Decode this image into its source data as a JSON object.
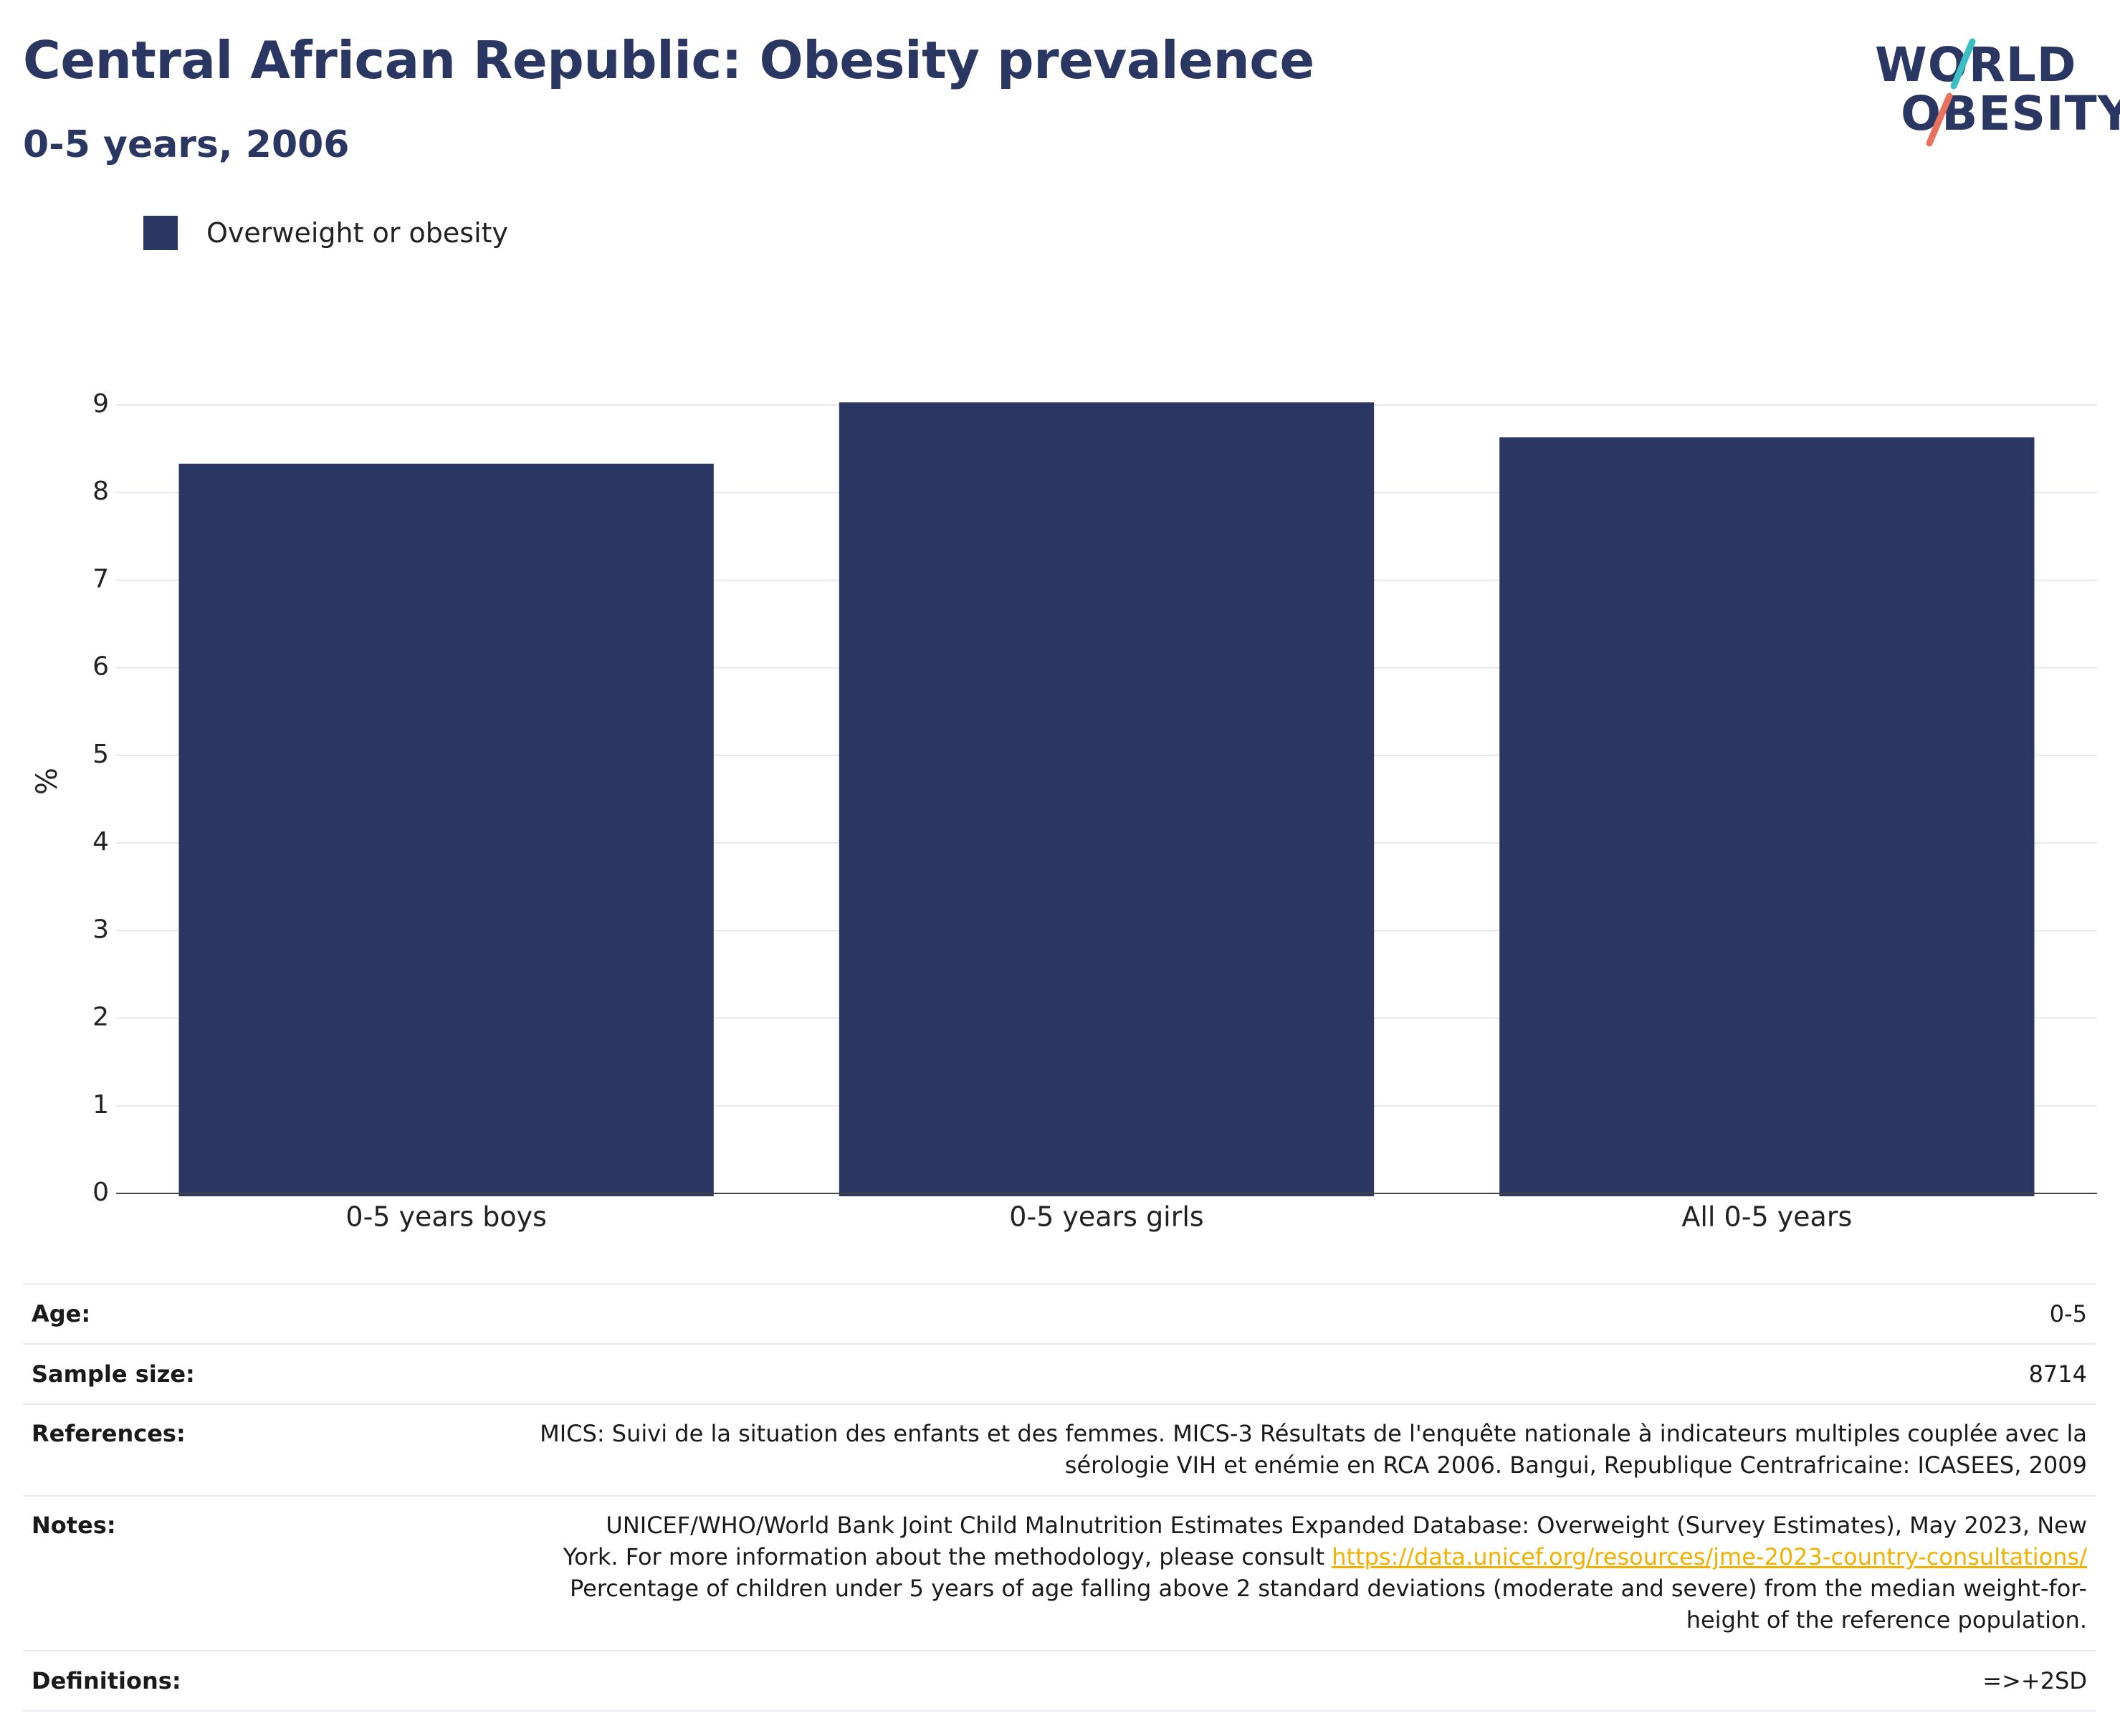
{
  "header": {
    "title": "Central African Republic: Obesity prevalence",
    "subtitle": "0-5 years, 2006"
  },
  "logo": {
    "line1": "WORLD",
    "line2": "OBESITY",
    "icon": "world-obesity-logo"
  },
  "colors": {
    "brand": "#2b3763",
    "bar": "#2b3763",
    "accent_teal": "#3bbfc4",
    "accent_coral": "#e8715f",
    "link": "#f2b100"
  },
  "chart_data": {
    "type": "bar",
    "categories": [
      "0-5 years boys",
      "0-5 years girls",
      "All 0-5 years"
    ],
    "series": [
      {
        "name": "Overweight or obesity",
        "values": [
          8.33,
          9.03,
          8.63
        ]
      }
    ],
    "ylabel": "%",
    "ylim": [
      0,
      9
    ],
    "yticks": [
      0,
      1,
      2,
      3,
      4,
      5,
      6,
      7,
      8,
      9
    ],
    "grid": true,
    "legend_position": "top-left"
  },
  "info_table": {
    "age": {
      "label": "Age:",
      "value": "0-5"
    },
    "sample_size": {
      "label": "Sample size:",
      "value": "8714"
    },
    "references": {
      "label": "References:",
      "line1": "MICS: Suivi de la situation des enfants et des femmes. MICS-3 Résultats de l'enquête nationale à indicateurs multiples couplée avec la",
      "line2": "sérologie VIH et enémie en RCA 2006. Bangui, Republique Centrafricaine: ICASEES, 2009"
    },
    "notes": {
      "label": "Notes:",
      "line1": "UNICEF/WHO/World Bank Joint Child Malnutrition Estimates Expanded Database: Overweight (Survey Estimates), May 2023, New",
      "line2_prefix": "York. For more information about the methodology, please consult ",
      "link": "https://data.unicef.org/resources/jme-2023-country-consultations/",
      "line3": "Percentage of children under 5 years of age falling above 2 standard deviations (moderate and severe) from the median weight-for-",
      "line4": "height of the reference population."
    },
    "definitions": {
      "label": "Definitions:",
      "value": "=>+2SD"
    }
  }
}
